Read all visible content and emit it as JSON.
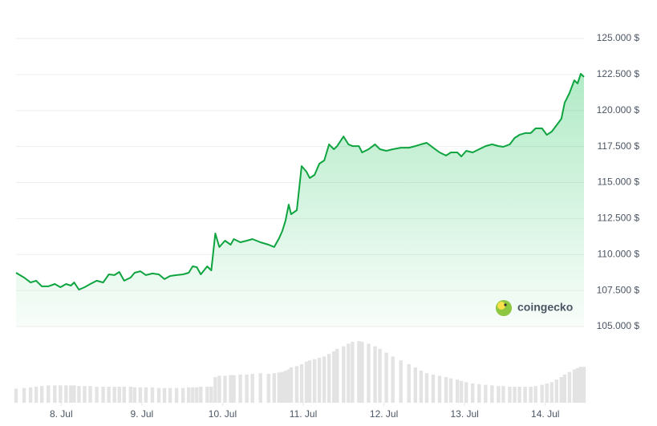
{
  "chart_data": {
    "type": "line",
    "watermark": "coingecko",
    "x": [
      7.44,
      7.54,
      7.62,
      7.69,
      7.76,
      7.84,
      7.92,
      7.99,
      8.06,
      8.12,
      8.16,
      8.22,
      8.29,
      8.36,
      8.44,
      8.52,
      8.59,
      8.66,
      8.72,
      8.78,
      8.86,
      8.91,
      8.98,
      9.05,
      9.13,
      9.21,
      9.28,
      9.35,
      9.43,
      9.51,
      9.58,
      9.63,
      9.68,
      9.73,
      9.81,
      9.86,
      9.91,
      9.96,
      10.03,
      10.1,
      10.14,
      10.22,
      10.3,
      10.37,
      10.47,
      10.57,
      10.64,
      10.7,
      10.74,
      10.78,
      10.82,
      10.85,
      10.92,
      10.98,
      11.04,
      11.08,
      11.14,
      11.2,
      11.26,
      11.32,
      11.38,
      11.42,
      11.5,
      11.56,
      11.61,
      11.69,
      11.73,
      11.81,
      11.89,
      11.95,
      12.03,
      12.11,
      12.21,
      12.31,
      12.39,
      12.46,
      12.53,
      12.61,
      12.69,
      12.77,
      12.83,
      12.91,
      12.96,
      13.02,
      13.1,
      13.18,
      13.26,
      13.34,
      13.42,
      13.48,
      13.56,
      13.62,
      13.68,
      13.75,
      13.82,
      13.88,
      13.96,
      14.02,
      14.08,
      14.14,
      14.2,
      14.24,
      14.3,
      14.36,
      14.4,
      14.44,
      14.48
    ],
    "series": [
      {
        "color": "#0ea43f",
        "values": [
          108730,
          108400,
          108060,
          108180,
          107790,
          107790,
          107950,
          107730,
          107950,
          107840,
          108060,
          107560,
          107730,
          107950,
          108180,
          108060,
          108620,
          108570,
          108790,
          108180,
          108400,
          108730,
          108840,
          108570,
          108680,
          108620,
          108290,
          108510,
          108570,
          108620,
          108730,
          109180,
          109120,
          108620,
          109180,
          108900,
          111460,
          110520,
          110960,
          110680,
          111070,
          110850,
          110960,
          111070,
          110850,
          110680,
          110520,
          111130,
          111630,
          112350,
          113470,
          112800,
          113080,
          116140,
          115750,
          115310,
          115530,
          116310,
          116530,
          117650,
          117310,
          117530,
          118200,
          117650,
          117530,
          117530,
          117090,
          117310,
          117650,
          117310,
          117200,
          117310,
          117420,
          117420,
          117530,
          117650,
          117760,
          117420,
          117090,
          116870,
          117090,
          117090,
          116810,
          117200,
          117090,
          117310,
          117530,
          117650,
          117530,
          117480,
          117650,
          118090,
          118310,
          118430,
          118430,
          118760,
          118760,
          118310,
          118540,
          118980,
          119430,
          120540,
          121210,
          122100,
          121880,
          122550,
          122330
        ]
      },
      {
        "color": "#e3e3e3",
        "axis": "y2",
        "values": [
          22,
          23,
          24,
          25,
          26,
          27,
          27,
          27,
          27,
          27,
          27,
          26,
          26,
          26,
          25,
          25,
          25,
          25,
          25,
          25,
          25,
          24,
          24,
          24,
          24,
          23,
          23,
          23,
          23,
          23,
          24,
          24,
          24,
          25,
          25,
          25,
          40,
          42,
          42,
          43,
          43,
          44,
          44,
          45,
          46,
          45,
          46,
          47,
          48,
          50,
          52,
          55,
          57,
          60,
          64,
          66,
          68,
          70,
          72,
          76,
          80,
          84,
          88,
          92,
          95,
          96,
          95,
          92,
          88,
          84,
          78,
          72,
          66,
          60,
          55,
          50,
          46,
          44,
          42,
          40,
          38,
          36,
          34,
          32,
          30,
          29,
          28,
          27,
          26,
          26,
          25,
          25,
          25,
          25,
          25,
          26,
          28,
          30,
          32,
          36,
          40,
          44,
          48,
          52,
          54,
          56,
          56
        ]
      }
    ],
    "xlim": [
      7.44,
      14.48
    ],
    "xticks": [
      {
        "value": 8,
        "label": "8. Jul"
      },
      {
        "value": 9,
        "label": "9. Jul"
      },
      {
        "value": 10,
        "label": "10. Jul"
      },
      {
        "value": 11,
        "label": "11. Jul"
      },
      {
        "value": 12,
        "label": "12. Jul"
      },
      {
        "value": 13,
        "label": "13. Jul"
      },
      {
        "value": 14,
        "label": "14. Jul"
      }
    ],
    "ylim": [
      105000,
      125000
    ],
    "yticks": [
      {
        "value": 105000,
        "label": "105.000 $"
      },
      {
        "value": 107500,
        "label": "107.500 $"
      },
      {
        "value": 110000,
        "label": "110.000 $"
      },
      {
        "value": 112500,
        "label": "112.500 $"
      },
      {
        "value": 115000,
        "label": "115.000 $"
      },
      {
        "value": 117500,
        "label": "117.500 $"
      },
      {
        "value": 120000,
        "label": "120.000 $"
      },
      {
        "value": 122500,
        "label": "122.500 $"
      },
      {
        "value": 125000,
        "label": "125.000 $"
      }
    ],
    "y2lim": [
      0,
      100
    ],
    "grid": true
  }
}
